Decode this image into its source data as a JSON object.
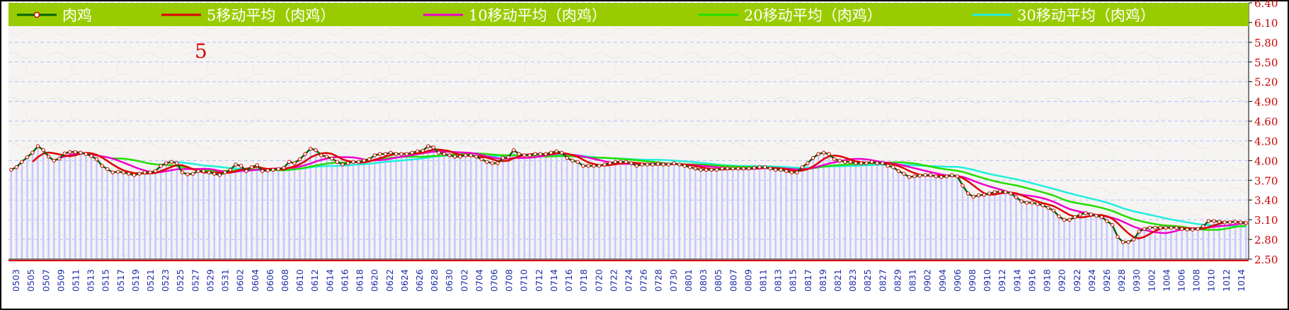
{
  "chart_data": {
    "type": "line",
    "title": "",
    "annotation": "5",
    "xlabel": "",
    "ylabel": "",
    "ylim": [
      2.5,
      6.4
    ],
    "y_ticks": [
      "2.50",
      "2.80",
      "3.10",
      "3.40",
      "3.70",
      "4.00",
      "4.30",
      "4.60",
      "4.90",
      "5.20",
      "5.50",
      "5.80",
      "6.10",
      "6.40"
    ],
    "x_ticks": [
      "0503",
      "0505",
      "0507",
      "0509",
      "0511",
      "0513",
      "0515",
      "0517",
      "0519",
      "0521",
      "0523",
      "0525",
      "0527",
      "0529",
      "0531",
      "0602",
      "0604",
      "0606",
      "0608",
      "0610",
      "0612",
      "0614",
      "0616",
      "0618",
      "0620",
      "0622",
      "0624",
      "0626",
      "0628",
      "0630",
      "0702",
      "0704",
      "0706",
      "0708",
      "0710",
      "0712",
      "0714",
      "0716",
      "0718",
      "0720",
      "0722",
      "0724",
      "0726",
      "0728",
      "0730",
      "0801",
      "0803",
      "0805",
      "0807",
      "0809",
      "0811",
      "0813",
      "0815",
      "0817",
      "0819",
      "0821",
      "0823",
      "0825",
      "0827",
      "0829",
      "0831",
      "0902",
      "0904",
      "0906",
      "0908",
      "0910",
      "0912",
      "0914",
      "0916",
      "0918",
      "0920",
      "0922",
      "0924",
      "0926",
      "0928",
      "0930",
      "1002",
      "1004",
      "1006",
      "1008",
      "1010",
      "1012",
      "1014"
    ],
    "legend_position": "top",
    "grid": true,
    "colors": {
      "legend_bg": "#99cc00",
      "bar": "#c8c8ff",
      "price": "#006600",
      "marker_fill": "#ffffff",
      "marker_stroke": "#cc0000",
      "ma5": "#dd0000",
      "ma10": "#ee00cc",
      "ma20": "#22dd00",
      "ma30": "#22eedd",
      "axis_tick": "#cc0000",
      "x_label": "#1f2fa8"
    },
    "series": [
      {
        "name": "肉鸡",
        "values": [
          3.86,
          3.9,
          3.98,
          4.05,
          4.12,
          4.22,
          4.16,
          4.06,
          4.0,
          4.03,
          4.11,
          4.13,
          4.13,
          4.12,
          4.1,
          4.07,
          4.02,
          3.92,
          3.87,
          3.82,
          3.83,
          3.82,
          3.8,
          3.78,
          3.8,
          3.82,
          3.82,
          3.84,
          3.92,
          3.96,
          3.98,
          3.96,
          3.82,
          3.79,
          3.8,
          3.84,
          3.84,
          3.82,
          3.8,
          3.78,
          3.82,
          3.86,
          3.94,
          3.92,
          3.84,
          3.9,
          3.93,
          3.84,
          3.85,
          3.86,
          3.87,
          3.89,
          3.98,
          3.96,
          4.02,
          4.1,
          4.18,
          4.16,
          4.08,
          4.06,
          4.03,
          3.98,
          3.94,
          3.96,
          3.98,
          3.98,
          4.0,
          4.02,
          4.08,
          4.1,
          4.1,
          4.12,
          4.1,
          4.1,
          4.1,
          4.12,
          4.14,
          4.15,
          4.22,
          4.2,
          4.12,
          4.1,
          4.08,
          4.06,
          4.06,
          4.08,
          4.08,
          4.06,
          4.02,
          3.98,
          3.96,
          3.96,
          4.04,
          4.05,
          4.16,
          4.1,
          4.08,
          4.08,
          4.1,
          4.1,
          4.1,
          4.12,
          4.14,
          4.12,
          4.04,
          4.0,
          3.98,
          3.92,
          3.92,
          3.92,
          3.92,
          3.94,
          3.96,
          3.98,
          3.98,
          3.98,
          3.96,
          3.92,
          3.94,
          3.94,
          3.94,
          3.95,
          3.94,
          3.94,
          3.96,
          3.94,
          3.92,
          3.9,
          3.88,
          3.86,
          3.86,
          3.86,
          3.86,
          3.88,
          3.88,
          3.88,
          3.88,
          3.88,
          3.88,
          3.89,
          3.9,
          3.9,
          3.88,
          3.86,
          3.86,
          3.84,
          3.82,
          3.82,
          3.9,
          3.96,
          4.04,
          4.1,
          4.12,
          4.1,
          4.02,
          4.0,
          3.98,
          3.98,
          3.96,
          3.96,
          3.96,
          3.98,
          3.96,
          3.96,
          3.92,
          3.9,
          3.84,
          3.8,
          3.75,
          3.76,
          3.77,
          3.78,
          3.78,
          3.76,
          3.75,
          3.76,
          3.78,
          3.76,
          3.62,
          3.5,
          3.45,
          3.47,
          3.48,
          3.5,
          3.52,
          3.53,
          3.52,
          3.5,
          3.44,
          3.38,
          3.36,
          3.36,
          3.34,
          3.32,
          3.28,
          3.24,
          3.15,
          3.1,
          3.1,
          3.14,
          3.18,
          3.2,
          3.18,
          3.16,
          3.14,
          3.08,
          3.02,
          2.84,
          2.76,
          2.76,
          2.8,
          2.92,
          2.96,
          2.98,
          2.98,
          2.98,
          2.98,
          2.98,
          2.98,
          2.96,
          2.95,
          2.95,
          2.96,
          3.0,
          3.08,
          3.08,
          3.07,
          3.06,
          3.06,
          3.07,
          3.06,
          3.05
        ]
      },
      {
        "name": "5移动平均（肉鸡）",
        "values": []
      },
      {
        "name": "10移动平均（肉鸡）",
        "values": []
      },
      {
        "name": "20移动平均（肉鸡）",
        "values": []
      },
      {
        "name": "30移动平均（肉鸡）",
        "values": []
      }
    ]
  }
}
